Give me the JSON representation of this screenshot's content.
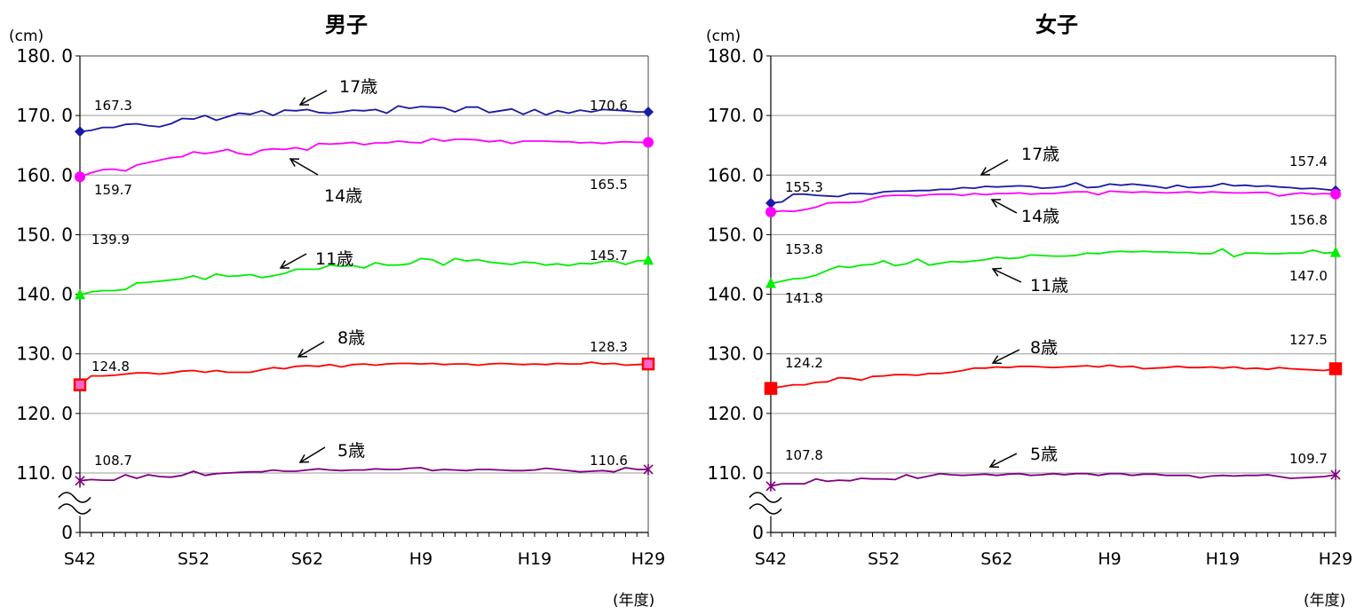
{
  "chart_data": [
    {
      "type": "line",
      "title": "男子",
      "y_unit": "(cm)",
      "x_unit": "(年度)",
      "x_tick_labels": [
        "S42",
        "S52",
        "S62",
        "H9",
        "H19",
        "H29"
      ],
      "y_tick_labels": [
        "180. 0",
        "170. 0",
        "160. 0",
        "150. 0",
        "140. 0",
        "130. 0",
        "120. 0",
        "110. 0",
        "0"
      ],
      "ylim": [
        100,
        180
      ],
      "axis_break": true,
      "grid": "horizontal",
      "x": [
        1967,
        1968,
        1969,
        1970,
        1971,
        1972,
        1973,
        1974,
        1975,
        1976,
        1977,
        1978,
        1979,
        1980,
        1981,
        1982,
        1983,
        1984,
        1985,
        1986,
        1987,
        1988,
        1989,
        1990,
        1991,
        1992,
        1993,
        1994,
        1995,
        1996,
        1997,
        1998,
        1999,
        2000,
        2001,
        2002,
        2003,
        2004,
        2005,
        2006,
        2007,
        2008,
        2009,
        2010,
        2011,
        2012,
        2013,
        2014,
        2015,
        2016,
        2017
      ],
      "series": [
        {
          "name": "17歳",
          "color": "#1a1aa6",
          "marker": "diamond",
          "first_label": "167.3",
          "last_label": "170.6",
          "values": [
            167.3,
            167.5,
            168.0,
            168.0,
            168.5,
            168.6,
            168.3,
            168.1,
            168.6,
            169.5,
            169.4,
            170.0,
            169.2,
            169.8,
            170.4,
            170.2,
            170.8,
            170.0,
            170.9,
            170.8,
            171.0,
            170.5,
            170.4,
            170.6,
            170.9,
            170.8,
            171.0,
            170.4,
            171.6,
            171.2,
            171.5,
            171.4,
            171.3,
            170.6,
            171.4,
            171.4,
            170.5,
            170.8,
            171.1,
            170.2,
            171.0,
            170.1,
            170.8,
            170.4,
            170.9,
            170.6,
            171.0,
            170.9,
            170.8,
            170.6,
            170.6
          ]
        },
        {
          "name": "14歳",
          "color": "#ff00ff",
          "marker": "circle",
          "first_label": "159.7",
          "last_label": "165.5",
          "values": [
            159.7,
            160.4,
            160.9,
            161.0,
            160.7,
            161.7,
            162.1,
            162.5,
            162.9,
            163.1,
            163.9,
            163.6,
            163.9,
            164.3,
            163.6,
            163.4,
            164.2,
            164.4,
            164.3,
            164.6,
            164.2,
            165.3,
            165.2,
            165.3,
            165.5,
            165.1,
            165.4,
            165.4,
            165.7,
            165.5,
            165.4,
            166.1,
            165.7,
            166.0,
            166.0,
            165.9,
            165.6,
            165.8,
            165.3,
            165.7,
            165.7,
            165.7,
            165.6,
            165.6,
            165.4,
            165.5,
            165.3,
            165.5,
            165.6,
            165.5,
            165.5
          ]
        },
        {
          "name": "11歳",
          "color": "#00ee00",
          "marker": "triangle",
          "first_label": "139.9",
          "last_label": "145.7",
          "values": [
            139.9,
            140.4,
            140.6,
            140.6,
            140.8,
            141.9,
            142.0,
            142.2,
            142.4,
            142.6,
            143.1,
            142.5,
            143.4,
            143.0,
            143.1,
            143.3,
            142.8,
            143.1,
            143.5,
            144.2,
            144.2,
            144.2,
            144.9,
            144.7,
            144.8,
            144.4,
            145.3,
            144.9,
            144.9,
            145.1,
            146.0,
            145.8,
            144.9,
            146.0,
            145.6,
            145.8,
            145.4,
            145.2,
            145.0,
            145.4,
            145.3,
            144.9,
            145.1,
            144.8,
            145.2,
            145.1,
            145.5,
            145.6,
            145.0,
            145.6,
            145.7
          ]
        },
        {
          "name": "8歳",
          "color": "#ff0000",
          "marker": "square",
          "first_label": "124.8",
          "last_label": "128.3",
          "values": [
            124.8,
            126.3,
            126.3,
            126.4,
            126.6,
            126.8,
            126.8,
            126.6,
            126.8,
            127.1,
            127.2,
            126.9,
            127.2,
            126.9,
            126.9,
            126.9,
            127.3,
            127.7,
            127.5,
            127.9,
            128.0,
            127.9,
            128.2,
            127.8,
            128.2,
            128.3,
            128.1,
            128.3,
            128.4,
            128.4,
            128.3,
            128.4,
            128.2,
            128.3,
            128.3,
            128.1,
            128.3,
            128.4,
            128.3,
            128.2,
            128.3,
            128.2,
            128.4,
            128.3,
            128.3,
            128.6,
            128.3,
            128.4,
            128.1,
            128.2,
            128.3
          ]
        },
        {
          "name": "5歳",
          "color": "#800080",
          "marker": "asterisk",
          "first_label": "108.7",
          "last_label": "110.6",
          "values": [
            108.7,
            108.9,
            108.8,
            108.8,
            109.7,
            109.1,
            109.7,
            109.4,
            109.3,
            109.6,
            110.3,
            109.6,
            109.9,
            110.0,
            110.1,
            110.2,
            110.2,
            110.5,
            110.3,
            110.3,
            110.5,
            110.7,
            110.5,
            110.4,
            110.5,
            110.5,
            110.7,
            110.6,
            110.6,
            110.8,
            110.9,
            110.4,
            110.6,
            110.5,
            110.4,
            110.6,
            110.6,
            110.5,
            110.4,
            110.4,
            110.5,
            110.8,
            110.6,
            110.4,
            110.2,
            110.3,
            110.4,
            110.2,
            110.9,
            110.6,
            110.6
          ]
        }
      ]
    },
    {
      "type": "line",
      "title": "女子",
      "y_unit": "(cm)",
      "x_unit": "(年度)",
      "x_tick_labels": [
        "S42",
        "S52",
        "S62",
        "H9",
        "H19",
        "H29"
      ],
      "y_tick_labels": [
        "180. 0",
        "170. 0",
        "160. 0",
        "150. 0",
        "140. 0",
        "130. 0",
        "120. 0",
        "110. 0",
        "0"
      ],
      "ylim": [
        100,
        180
      ],
      "axis_break": true,
      "grid": "horizontal",
      "x": [
        1967,
        1968,
        1969,
        1970,
        1971,
        1972,
        1973,
        1974,
        1975,
        1976,
        1977,
        1978,
        1979,
        1980,
        1981,
        1982,
        1983,
        1984,
        1985,
        1986,
        1987,
        1988,
        1989,
        1990,
        1991,
        1992,
        1993,
        1994,
        1995,
        1996,
        1997,
        1998,
        1999,
        2000,
        2001,
        2002,
        2003,
        2004,
        2005,
        2006,
        2007,
        2008,
        2009,
        2010,
        2011,
        2012,
        2013,
        2014,
        2015,
        2016,
        2017
      ],
      "series": [
        {
          "name": "17歳",
          "color": "#1a1aa6",
          "marker": "diamond",
          "first_label": "155.3",
          "last_label": "157.4",
          "values": [
            155.3,
            155.5,
            156.8,
            156.8,
            156.6,
            156.5,
            156.4,
            156.9,
            156.9,
            156.8,
            157.2,
            157.3,
            157.3,
            157.4,
            157.4,
            157.6,
            157.6,
            157.9,
            157.8,
            158.1,
            158.0,
            158.1,
            158.2,
            158.1,
            157.8,
            157.9,
            158.1,
            158.7,
            157.9,
            158.0,
            158.5,
            158.3,
            158.5,
            158.3,
            158.1,
            157.8,
            158.3,
            157.9,
            158.0,
            158.1,
            158.6,
            158.2,
            158.3,
            158.1,
            158.2,
            158.0,
            157.9,
            157.7,
            157.8,
            157.6,
            157.4
          ]
        },
        {
          "name": "14歳",
          "color": "#ff00ff",
          "marker": "circle",
          "first_label": "153.8",
          "last_label": "156.8",
          "values": [
            153.8,
            154.0,
            153.9,
            154.2,
            154.6,
            155.3,
            155.4,
            155.4,
            155.5,
            156.1,
            156.5,
            156.6,
            156.6,
            156.5,
            156.7,
            156.8,
            156.8,
            156.6,
            156.9,
            156.7,
            156.9,
            156.9,
            157.0,
            156.8,
            156.9,
            156.9,
            157.1,
            157.2,
            157.2,
            156.7,
            157.3,
            157.2,
            157.1,
            157.2,
            157.1,
            157.0,
            157.1,
            157.2,
            157.0,
            157.2,
            157.1,
            157.0,
            157.0,
            157.1,
            157.1,
            156.5,
            156.8,
            157.0,
            156.8,
            156.9,
            156.8
          ]
        },
        {
          "name": "11歳",
          "color": "#00ee00",
          "marker": "triangle",
          "first_label": "141.8",
          "last_label": "147.0",
          "values": [
            141.8,
            142.2,
            142.6,
            142.7,
            143.2,
            144.0,
            144.7,
            144.5,
            144.9,
            145.0,
            145.6,
            144.8,
            145.1,
            145.9,
            144.9,
            145.2,
            145.5,
            145.4,
            145.6,
            145.8,
            146.2,
            146.0,
            146.1,
            146.6,
            146.5,
            146.4,
            146.4,
            146.5,
            146.9,
            146.8,
            147.1,
            147.2,
            147.1,
            147.2,
            147.1,
            147.1,
            147.0,
            147.0,
            146.8,
            146.8,
            147.6,
            146.3,
            146.9,
            146.9,
            146.8,
            146.8,
            146.9,
            146.9,
            147.4,
            146.9,
            147.0
          ]
        },
        {
          "name": "8歳",
          "color": "#ff0000",
          "marker": "square",
          "first_label": "124.2",
          "last_label": "127.5",
          "values": [
            124.2,
            124.5,
            124.8,
            124.8,
            125.2,
            125.3,
            126.0,
            125.9,
            125.6,
            126.2,
            126.3,
            126.5,
            126.5,
            126.4,
            126.7,
            126.7,
            126.9,
            127.2,
            127.6,
            127.6,
            127.8,
            127.7,
            127.9,
            127.9,
            127.8,
            127.7,
            127.8,
            127.9,
            128.0,
            127.8,
            128.1,
            127.8,
            127.9,
            127.5,
            127.6,
            127.7,
            127.9,
            127.7,
            127.7,
            127.8,
            127.6,
            127.8,
            127.5,
            127.6,
            127.4,
            127.7,
            127.5,
            127.4,
            127.3,
            127.2,
            127.5
          ]
        },
        {
          "name": "5歳",
          "color": "#800080",
          "marker": "asterisk",
          "first_label": "107.8",
          "last_label": "109.7",
          "values": [
            107.8,
            108.2,
            108.2,
            108.2,
            109.0,
            108.6,
            108.8,
            108.7,
            109.1,
            109.0,
            109.0,
            108.9,
            109.7,
            109.1,
            109.5,
            109.9,
            109.7,
            109.6,
            109.7,
            109.8,
            109.6,
            109.8,
            109.9,
            109.6,
            109.7,
            109.9,
            109.7,
            109.9,
            109.9,
            109.6,
            109.9,
            109.9,
            109.6,
            109.8,
            109.8,
            109.6,
            109.6,
            109.6,
            109.2,
            109.5,
            109.6,
            109.5,
            109.6,
            109.6,
            109.7,
            109.4,
            109.1,
            109.2,
            109.3,
            109.4,
            109.7
          ]
        }
      ]
    }
  ]
}
